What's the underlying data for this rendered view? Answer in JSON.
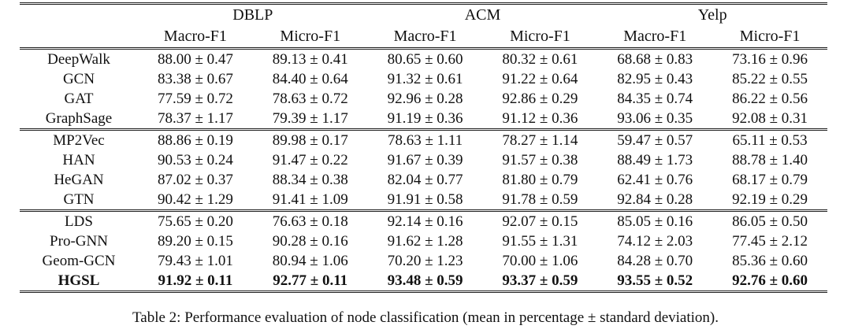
{
  "colors": {
    "background": "#ffffff",
    "text": "#111111",
    "rule": "#1e1e1e"
  },
  "caption": "Table 2: Performance evaluation of node classification (mean in percentage ± standard deviation).",
  "table": {
    "column_groups": [
      {
        "label": "DBLP",
        "columns": [
          "Macro-F1",
          "Micro-F1"
        ]
      },
      {
        "label": "ACM",
        "columns": [
          "Macro-F1",
          "Micro-F1"
        ]
      },
      {
        "label": "Yelp",
        "columns": [
          "Macro-F1",
          "Micro-F1"
        ]
      }
    ],
    "rows": [
      {
        "method": "DeepWalk",
        "bold": false,
        "group_end": false,
        "cells": [
          "88.00 ± 0.47",
          "89.13 ± 0.41",
          "80.65 ± 0.60",
          "80.32 ± 0.61",
          "68.68 ± 0.83",
          "73.16 ± 0.96"
        ]
      },
      {
        "method": "GCN",
        "bold": false,
        "group_end": false,
        "cells": [
          "83.38 ± 0.67",
          "84.40 ± 0.64",
          "91.32 ± 0.61",
          "91.22 ± 0.64",
          "82.95 ± 0.43",
          "85.22 ± 0.55"
        ]
      },
      {
        "method": "GAT",
        "bold": false,
        "group_end": false,
        "cells": [
          "77.59 ± 0.72",
          "78.63 ± 0.72",
          "92.96 ± 0.28",
          "92.86 ± 0.29",
          "84.35 ± 0.74",
          "86.22 ± 0.56"
        ]
      },
      {
        "method": "GraphSage",
        "bold": false,
        "group_end": true,
        "cells": [
          "78.37 ± 1.17",
          "79.39 ± 1.17",
          "91.19 ± 0.36",
          "91.12 ± 0.36",
          "93.06 ± 0.35",
          "92.08 ± 0.31"
        ]
      },
      {
        "method": "MP2Vec",
        "bold": false,
        "group_end": false,
        "cells": [
          "88.86 ± 0.19",
          "89.98 ± 0.17",
          "78.63 ± 1.11",
          "78.27 ± 1.14",
          "59.47 ± 0.57",
          "65.11 ± 0.53"
        ]
      },
      {
        "method": "HAN",
        "bold": false,
        "group_end": false,
        "cells": [
          "90.53 ± 0.24",
          "91.47 ± 0.22",
          "91.67 ± 0.39",
          "91.57 ± 0.38",
          "88.49 ± 1.73",
          "88.78 ± 1.40"
        ]
      },
      {
        "method": "HeGAN",
        "bold": false,
        "group_end": false,
        "cells": [
          "87.02 ± 0.37",
          "88.34 ± 0.38",
          "82.04 ± 0.77",
          "81.80 ± 0.79",
          "62.41 ± 0.76",
          "68.17 ± 0.79"
        ]
      },
      {
        "method": "GTN",
        "bold": false,
        "group_end": true,
        "cells": [
          "90.42 ± 1.29",
          "91.41 ± 1.09",
          "91.91 ± 0.58",
          "91.78 ± 0.59",
          "92.84 ± 0.28",
          "92.19 ± 0.29"
        ]
      },
      {
        "method": "LDS",
        "bold": false,
        "group_end": false,
        "cells": [
          "75.65 ± 0.20",
          "76.63 ± 0.18",
          "92.14 ± 0.16",
          "92.07 ± 0.15",
          "85.05 ± 0.16",
          "86.05 ± 0.50"
        ]
      },
      {
        "method": "Pro-GNN",
        "bold": false,
        "group_end": false,
        "cells": [
          "89.20 ± 0.15",
          "90.28 ± 0.16",
          "91.62 ± 1.28",
          "91.55 ± 1.31",
          "74.12 ± 2.03",
          "77.45 ± 2.12"
        ]
      },
      {
        "method": "Geom-GCN",
        "bold": false,
        "group_end": false,
        "cells": [
          "79.43 ± 1.01",
          "80.94 ± 1.06",
          "70.20 ± 1.23",
          "70.00 ± 1.06",
          "84.28 ± 0.70",
          "85.36 ± 0.60"
        ]
      },
      {
        "method": "HGSL",
        "bold": true,
        "group_end": false,
        "cells": [
          "91.92 ± 0.11",
          "92.77 ± 0.11",
          "93.48 ± 0.59",
          "93.37 ± 0.59",
          "93.55 ± 0.52",
          "92.76 ± 0.60"
        ]
      }
    ]
  }
}
